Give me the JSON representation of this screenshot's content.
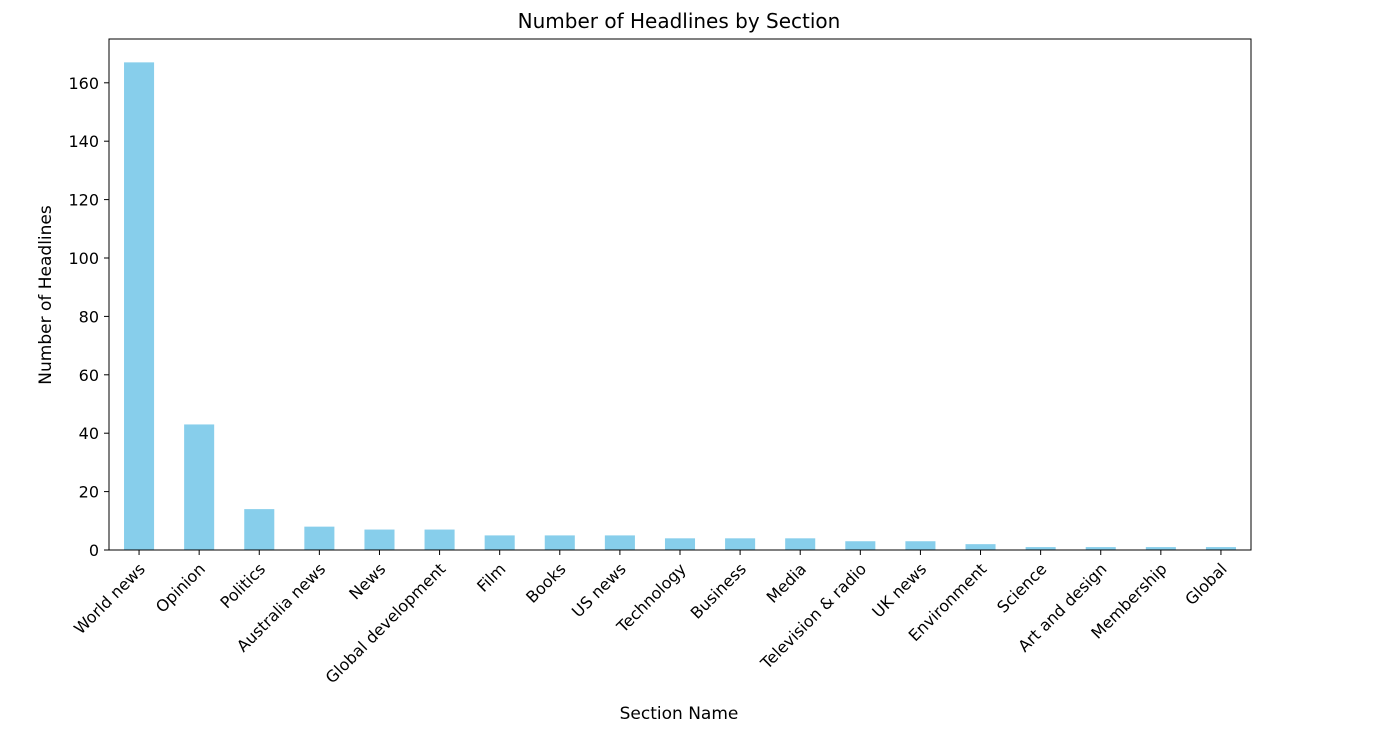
{
  "chart_data": {
    "type": "bar",
    "title": "Number of Headlines by Section",
    "xlabel": "Section Name",
    "ylabel": "Number of Headlines",
    "categories": [
      "World news",
      "Opinion",
      "Politics",
      "Australia news",
      "News",
      "Global development",
      "Film",
      "Books",
      "US news",
      "Technology",
      "Business",
      "Media",
      "Television & radio",
      "UK news",
      "Environment",
      "Science",
      "Art and design",
      "Membership",
      "Global"
    ],
    "values": [
      167,
      43,
      14,
      8,
      7,
      7,
      5,
      5,
      5,
      4,
      4,
      4,
      3,
      3,
      2,
      1,
      1,
      1,
      1
    ],
    "ylim": [
      0,
      175
    ],
    "yticks": [
      0,
      20,
      40,
      60,
      80,
      100,
      120,
      140,
      160
    ],
    "bar_color": "#87ceeb",
    "grid": false,
    "legend": false
  }
}
